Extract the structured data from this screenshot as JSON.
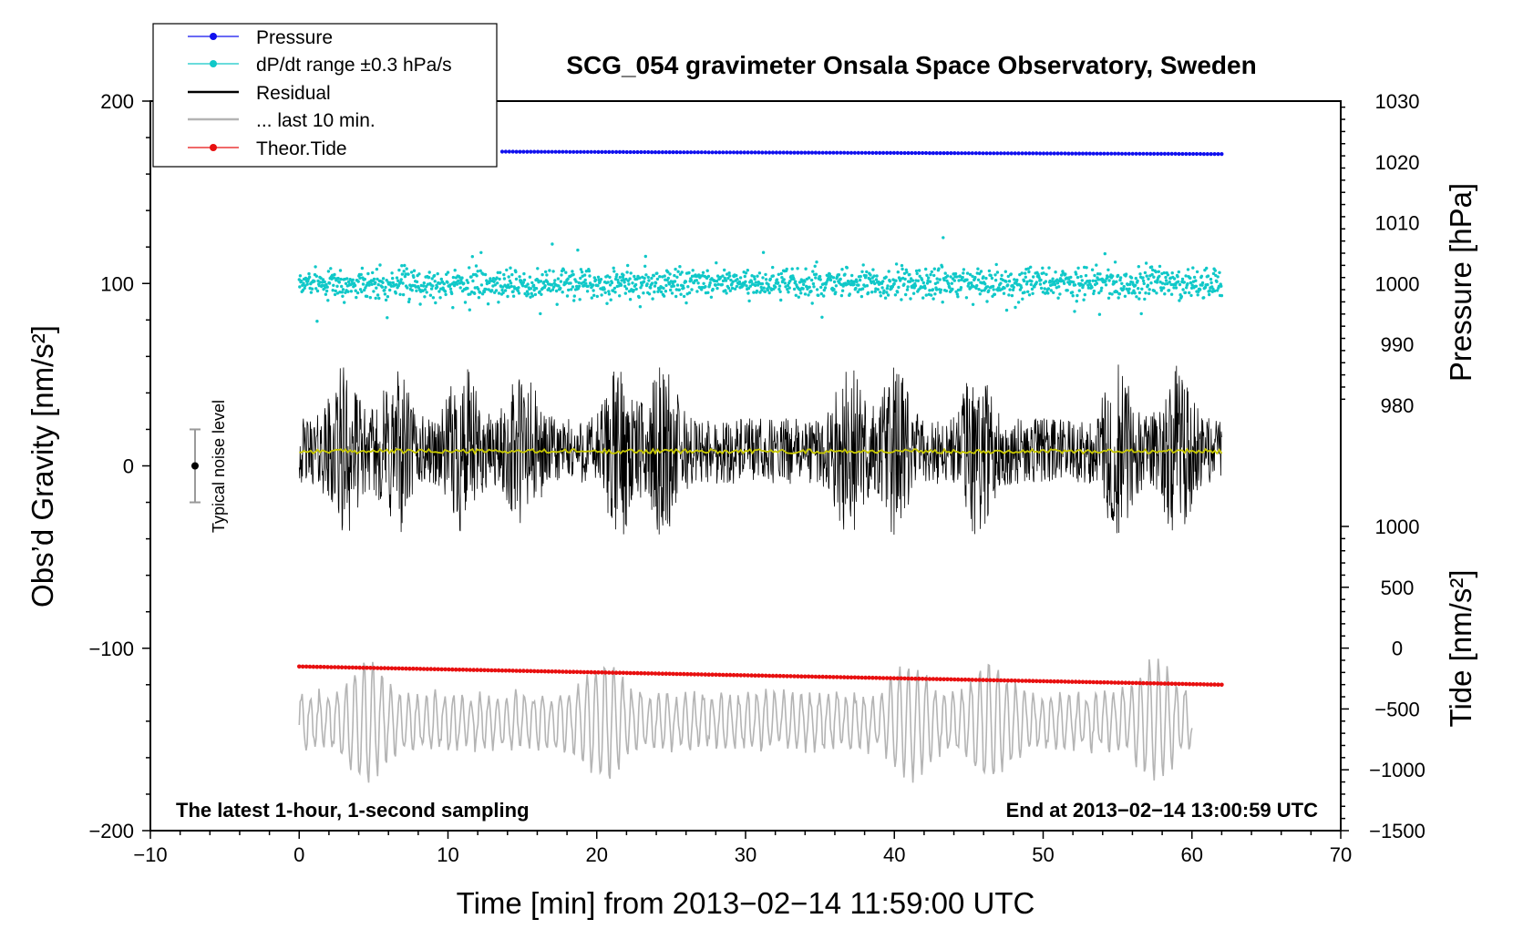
{
  "chart_data": {
    "type": "line",
    "title": "SCG_054 gravimeter Onsala Space Observatory, Sweden",
    "xlabel": "Time [min] from 2013−02−14 11:59:00 UTC",
    "ylabel_left": "Obs’d Gravity [nm/s²]",
    "ylabel_right_top": "Pressure [hPa]",
    "ylabel_right_bottom": "Tide [nm/s²]",
    "xlim": [
      -10,
      70
    ],
    "ylim_left": [
      -200,
      200
    ],
    "x_ticks": [
      "−10",
      "0",
      "10",
      "20",
      "30",
      "40",
      "50",
      "60",
      "70"
    ],
    "y_left_ticks": [
      "200",
      "100",
      "0",
      "−100",
      "−200"
    ],
    "y_pressure_ticks": [
      "1030",
      "1020",
      "1010",
      "1000",
      "990",
      "980"
    ],
    "y_tide_ticks": [
      "1000",
      "500",
      "0",
      "−500",
      "−1000",
      "−1500"
    ],
    "annotation_left": "The latest 1-hour, 1-second sampling",
    "annotation_right": "End at 2013−02−14 13:00:59 UTC",
    "noise_label": "Typical noise level",
    "noise_bar": {
      "x": -7,
      "center": 0,
      "half_range": 20
    },
    "legend": [
      {
        "label": "Pressure",
        "color": "#1010ee",
        "marker": true
      },
      {
        "label": "dP/dt range ±0.3 hPa/s",
        "color": "#10c8c8",
        "marker": true
      },
      {
        "label": "Residual",
        "color": "#000000",
        "marker": false
      },
      {
        "label": "... last 10 min.",
        "color": "#b4b4b4",
        "marker": false
      },
      {
        "label": "Theor.Tide",
        "color": "#e81010",
        "marker": true
      }
    ],
    "series": [
      {
        "name": "Pressure",
        "color": "#1010ee",
        "x_range": [
          0,
          62
        ],
        "y_start": 1021.8,
        "y_end": 1021.3,
        "axis": "pressure_hPa"
      },
      {
        "name": "dP/dt",
        "color": "#10c8c8",
        "x_range": [
          0,
          62
        ],
        "center": 100,
        "scatter": 12,
        "axis": "gravity"
      },
      {
        "name": "Residual",
        "color": "#000000",
        "x_range": [
          0,
          62
        ],
        "center": 8,
        "amplitude": 50,
        "axis": "gravity"
      },
      {
        "name": "Residual smoothed",
        "color": "#c8c800",
        "x_range": [
          0,
          62
        ],
        "center": 8,
        "axis": "gravity"
      },
      {
        "name": "... last 10 min.",
        "color": "#b4b4b4",
        "x_range": [
          0,
          60
        ],
        "center": -140,
        "amplitude": 25,
        "axis": "gravity"
      },
      {
        "name": "Theor.Tide",
        "color": "#e81010",
        "x_range": [
          0,
          62
        ],
        "y_start": -110,
        "y_end": -120,
        "axis": "gravity"
      }
    ]
  }
}
